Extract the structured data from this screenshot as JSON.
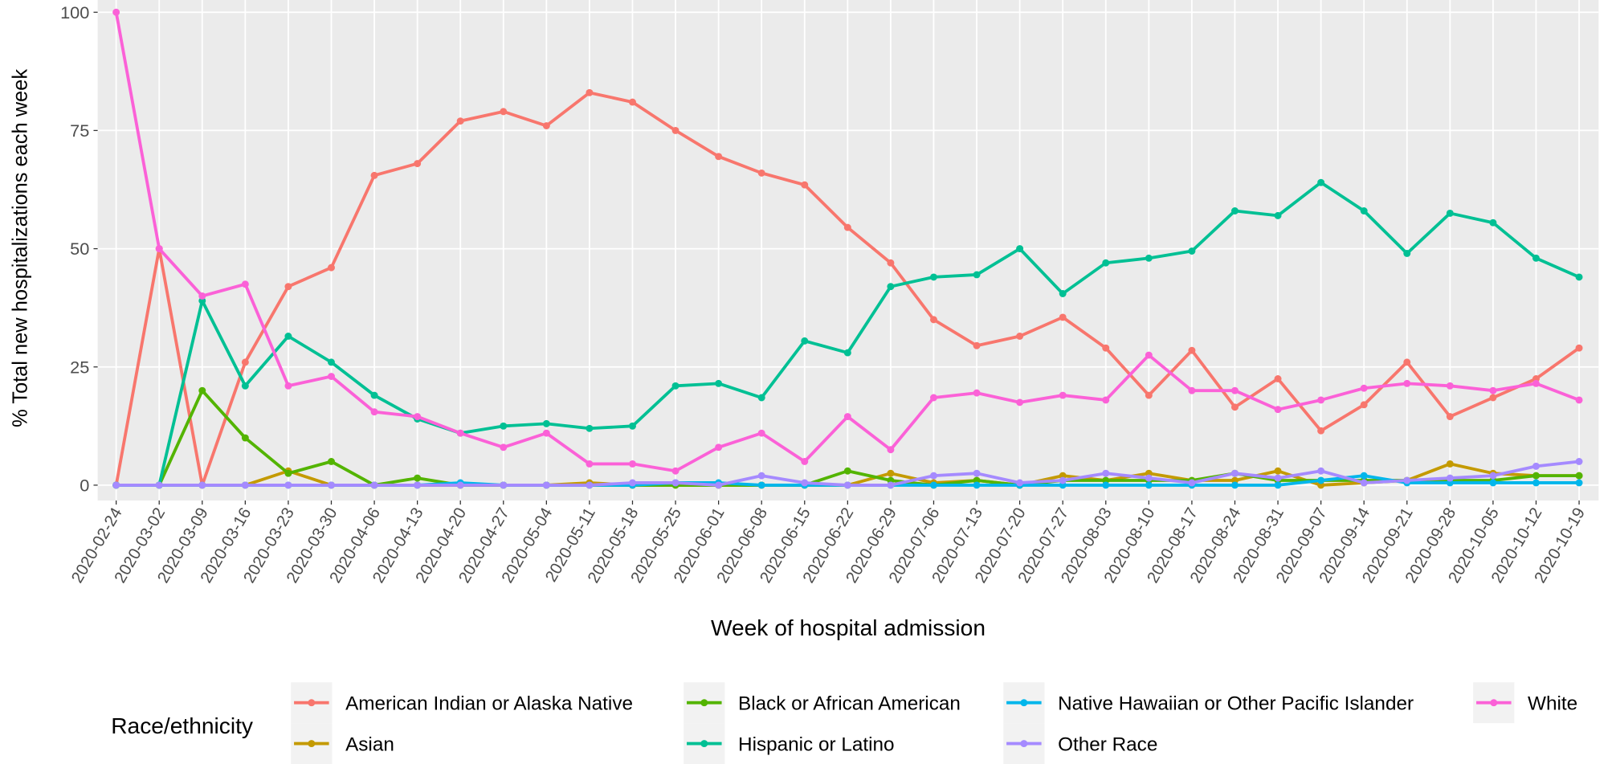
{
  "chart_data": {
    "type": "line",
    "x_label": "Week of hospital admission",
    "y_label": "% Total new hospitalizations each week",
    "legend_title": "Race/ethnicity",
    "legend_position": "bottom",
    "grid": true,
    "categories": [
      "2020-02-24",
      "2020-03-02",
      "2020-03-09",
      "2020-03-16",
      "2020-03-23",
      "2020-03-30",
      "2020-04-06",
      "2020-04-13",
      "2020-04-20",
      "2020-04-27",
      "2020-05-04",
      "2020-05-11",
      "2020-05-18",
      "2020-05-25",
      "2020-06-01",
      "2020-06-08",
      "2020-06-15",
      "2020-06-22",
      "2020-06-29",
      "2020-07-06",
      "2020-07-13",
      "2020-07-20",
      "2020-07-27",
      "2020-08-03",
      "2020-08-10",
      "2020-08-17",
      "2020-08-24",
      "2020-08-31",
      "2020-09-07",
      "2020-09-14",
      "2020-09-21",
      "2020-09-28",
      "2020-10-05",
      "2020-10-12",
      "2020-10-19"
    ],
    "ylim": [
      0,
      100
    ],
    "yticks": [
      0,
      25,
      50,
      75,
      100
    ],
    "series": [
      {
        "name": "American Indian or Alaska Native",
        "color": "#F8766D",
        "values": [
          0,
          50,
          0,
          26,
          42,
          46,
          65.5,
          68,
          77,
          79,
          76,
          83,
          81,
          75,
          69.5,
          66,
          63.5,
          54.5,
          47,
          35,
          29.5,
          31.5,
          35.5,
          29,
          19,
          28.5,
          16.5,
          22.5,
          11.5,
          17,
          26,
          14.5,
          18.5,
          22.5,
          29
        ]
      },
      {
        "name": "Asian",
        "color": "#C49A00",
        "values": [
          0,
          0,
          0,
          0,
          3,
          0,
          0,
          0,
          0,
          0,
          0,
          0.5,
          0,
          0,
          0,
          0,
          0,
          0,
          2.5,
          0.5,
          1,
          0,
          2,
          1,
          2.5,
          1,
          1,
          3,
          0,
          0.5,
          1,
          4.5,
          2.5,
          2,
          2
        ]
      },
      {
        "name": "Black or African American",
        "color": "#53B400",
        "values": [
          0,
          0,
          20,
          10,
          2.5,
          5,
          0,
          1.5,
          0,
          0,
          0,
          0,
          0,
          0,
          0,
          0,
          0,
          3,
          1,
          0,
          1,
          0,
          1,
          1,
          1,
          1,
          2.5,
          1,
          1,
          1,
          1,
          1,
          1,
          2,
          2
        ]
      },
      {
        "name": "Hispanic or Latino",
        "color": "#00C094",
        "values": [
          0,
          0,
          39,
          21,
          31.5,
          26,
          19,
          14,
          11,
          12.5,
          13,
          12,
          12.5,
          21,
          21.5,
          18.5,
          30.5,
          28,
          42,
          44,
          44.5,
          50,
          40.5,
          47,
          48,
          49.5,
          58,
          57,
          64,
          58,
          49,
          57.5,
          55.5,
          48,
          44
        ]
      },
      {
        "name": "Native Hawaiian or Other Pacific Islander",
        "color": "#00B6EB",
        "values": [
          0,
          0,
          0,
          0,
          0,
          0,
          0,
          0,
          0.5,
          0,
          0,
          0,
          0,
          0.5,
          0.5,
          0,
          0,
          0,
          0,
          0,
          0,
          0,
          0,
          0,
          0,
          0,
          0,
          0,
          1,
          2,
          0.5,
          0.5,
          0.5,
          0.5,
          0.5
        ]
      },
      {
        "name": "Other Race",
        "color": "#A58AFF",
        "values": [
          0,
          0,
          0,
          0,
          0,
          0,
          0,
          0,
          0,
          0,
          0,
          0,
          0.5,
          0.5,
          0,
          2,
          0.5,
          0,
          0,
          2,
          2.5,
          0.5,
          1,
          2.5,
          1.5,
          0.5,
          2.5,
          1.5,
          3,
          0.5,
          1,
          1.5,
          2,
          4,
          5
        ]
      },
      {
        "name": "White",
        "color": "#FB61D7",
        "values": [
          100,
          50,
          40,
          42.5,
          21,
          23,
          15.5,
          14.5,
          11,
          8,
          11,
          4.5,
          4.5,
          3,
          8,
          11,
          5,
          14.5,
          7.5,
          18.5,
          19.5,
          17.5,
          19,
          18,
          27.5,
          20,
          20,
          16,
          18,
          20.5,
          21.5,
          21,
          20,
          21.5,
          18
        ]
      }
    ]
  }
}
